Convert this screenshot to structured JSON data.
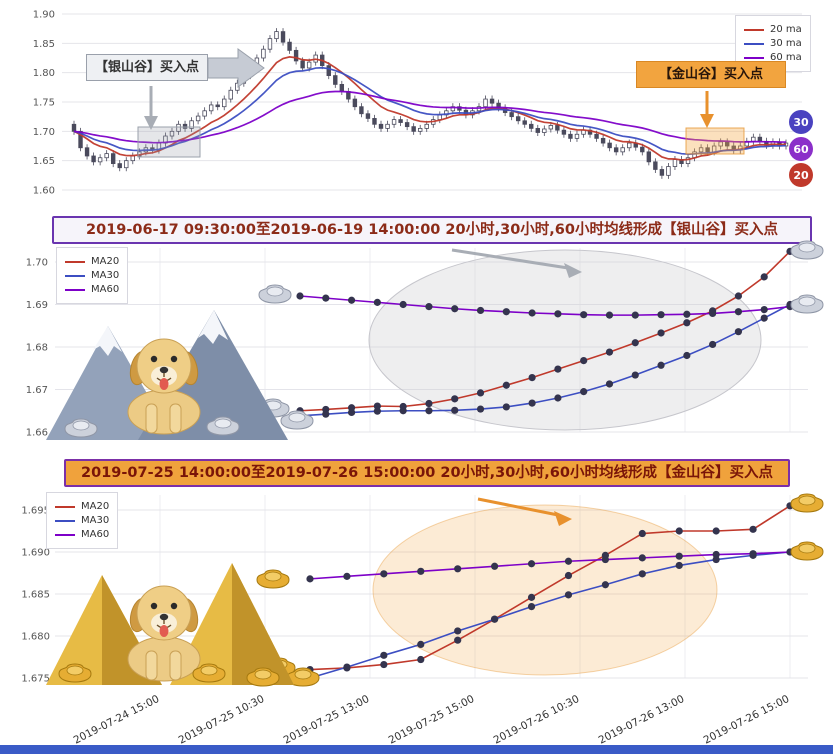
{
  "chart_data": [
    {
      "id": "main_candlestick",
      "type": "bar",
      "subtype": "candlestick",
      "ylim": [
        1.6,
        1.9
      ],
      "yticks": [
        "1.90",
        "1.85",
        "1.80",
        "1.75",
        "1.70",
        "1.65",
        "1.60"
      ],
      "legend": [
        {
          "label": "20 ma",
          "color": "#c0392b"
        },
        {
          "label": "30 ma",
          "color": "#3c4ec2"
        },
        {
          "label": "60 ma",
          "color": "#7d00c8"
        }
      ],
      "ma_windows": [
        20,
        30,
        60
      ],
      "end_chips": [
        {
          "label": "30",
          "color": "#4a42c0"
        },
        {
          "label": "60",
          "color": "#8b2fc9"
        },
        {
          "label": "20",
          "color": "#c0392b"
        }
      ],
      "annotations": {
        "silver": "【银山谷】买入点",
        "gold": "【金山谷】买入点"
      },
      "first_open": 1.712,
      "wick": 0.006,
      "closes": [
        1.7,
        1.672,
        1.658,
        1.648,
        1.655,
        1.662,
        1.645,
        1.638,
        1.65,
        1.658,
        1.665,
        1.672,
        1.668,
        1.68,
        1.692,
        1.7,
        1.712,
        1.705,
        1.718,
        1.726,
        1.735,
        1.745,
        1.742,
        1.755,
        1.77,
        1.782,
        1.795,
        1.81,
        1.825,
        1.84,
        1.858,
        1.87,
        1.852,
        1.838,
        1.82,
        1.808,
        1.818,
        1.83,
        1.812,
        1.795,
        1.78,
        1.768,
        1.755,
        1.742,
        1.73,
        1.722,
        1.712,
        1.705,
        1.712,
        1.72,
        1.715,
        1.708,
        1.7,
        1.705,
        1.712,
        1.72,
        1.728,
        1.735,
        1.742,
        1.736,
        1.728,
        1.735,
        1.742,
        1.755,
        1.748,
        1.74,
        1.732,
        1.725,
        1.718,
        1.712,
        1.705,
        1.698,
        1.704,
        1.71,
        1.702,
        1.695,
        1.688,
        1.695,
        1.702,
        1.695,
        1.688,
        1.68,
        1.672,
        1.665,
        1.672,
        1.68,
        1.673,
        1.665,
        1.648,
        1.635,
        1.625,
        1.64,
        1.652,
        1.645,
        1.655,
        1.665,
        1.672,
        1.665,
        1.675,
        1.682,
        1.675,
        1.668,
        1.675,
        1.683,
        1.69,
        1.683,
        1.676,
        1.682,
        1.675,
        1.68
      ]
    },
    {
      "id": "silver_valley",
      "type": "line",
      "banner": "2019-06-17 09:30:00至2019-06-19 14:00:00 20小时,30小时,60小时均线形成【银山谷】买入点",
      "yticks": [
        "1.70",
        "1.69",
        "1.68",
        "1.67",
        "1.66"
      ],
      "legend_position": "upper-left",
      "series": [
        {
          "name": "MA20",
          "color": "#c0392b",
          "values": [
            1.665,
            1.6653,
            1.6657,
            1.6661,
            1.666,
            1.6667,
            1.6678,
            1.6692,
            1.671,
            1.6728,
            1.6748,
            1.6768,
            1.6788,
            1.681,
            1.6833,
            1.6857,
            1.6885,
            1.692,
            1.6965,
            1.7025
          ]
        },
        {
          "name": "MA30",
          "color": "#3c4ec2",
          "values": [
            1.6638,
            1.6642,
            1.6646,
            1.6649,
            1.665,
            1.665,
            1.6651,
            1.6654,
            1.6659,
            1.6668,
            1.668,
            1.6695,
            1.6713,
            1.6734,
            1.6757,
            1.678,
            1.6806,
            1.6836,
            1.6868,
            1.69
          ]
        },
        {
          "name": "MA60",
          "color": "#7d00c8",
          "values": [
            1.692,
            1.6915,
            1.691,
            1.6905,
            1.69,
            1.6895,
            1.689,
            1.6886,
            1.6883,
            1.688,
            1.6878,
            1.6876,
            1.6875,
            1.6875,
            1.6876,
            1.6877,
            1.6879,
            1.6883,
            1.6888,
            1.6895
          ]
        }
      ]
    },
    {
      "id": "gold_valley",
      "type": "line",
      "banner": "2019-07-25 14:00:00至2019-07-26 15:00:00 20小时,30小时,60小时均线形成【金山谷】买入点",
      "yticks": [
        "1.695",
        "1.690",
        "1.685",
        "1.680",
        "1.675"
      ],
      "xlabels": [
        "2019-07-24 15:00",
        "2019-07-25 10:30",
        "2019-07-25 13:00",
        "2019-07-25 15:00",
        "2019-07-26 10:30",
        "2019-07-26 13:00",
        "2019-07-26 15:00"
      ],
      "legend_position": "upper-left",
      "series": [
        {
          "name": "MA20",
          "color": "#c0392b",
          "values": [
            1.676,
            1.6762,
            1.6766,
            1.6772,
            1.6795,
            1.682,
            1.6846,
            1.6872,
            1.6896,
            1.6922,
            1.6925,
            1.6925,
            1.6927,
            1.6955
          ]
        },
        {
          "name": "MA30",
          "color": "#3c4ec2",
          "values": [
            1.675,
            1.6763,
            1.6777,
            1.679,
            1.6806,
            1.682,
            1.6835,
            1.6849,
            1.6861,
            1.6874,
            1.6884,
            1.6891,
            1.6896,
            1.69
          ]
        },
        {
          "name": "MA60",
          "color": "#7d00c8",
          "values": [
            1.6868,
            1.6871,
            1.6874,
            1.6877,
            1.688,
            1.6883,
            1.6886,
            1.6889,
            1.6891,
            1.6893,
            1.6895,
            1.6897,
            1.6898,
            1.69
          ]
        }
      ]
    }
  ]
}
